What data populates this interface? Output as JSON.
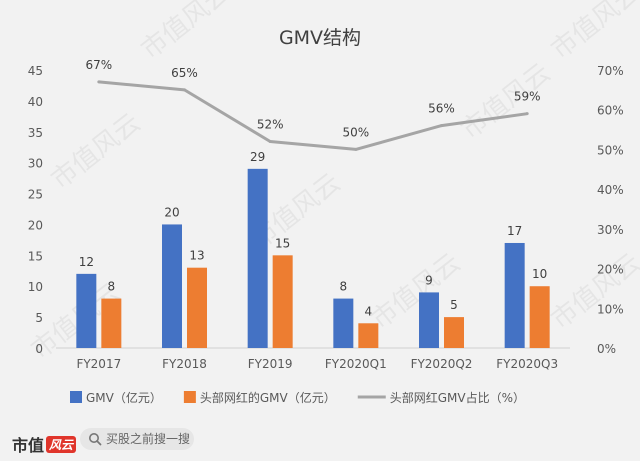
{
  "chart_data": {
    "type": "bar",
    "title": "GMV结构",
    "categories": [
      "FY2017",
      "FY2018",
      "FY2019",
      "FY2020Q1",
      "FY2020Q2",
      "FY2020Q3"
    ],
    "series": [
      {
        "name": "GMV（亿元）",
        "kind": "bar",
        "axis": "left",
        "color": "#4472c4",
        "values": [
          12,
          20,
          29,
          8,
          9,
          17
        ]
      },
      {
        "name": "头部网红的GMV（亿元）",
        "kind": "bar",
        "axis": "left",
        "color": "#ed7d31",
        "values": [
          8,
          13,
          15,
          4,
          5,
          10
        ]
      },
      {
        "name": "头部网红GMV占比（%）",
        "kind": "line",
        "axis": "right",
        "color": "#a5a5a5",
        "values": [
          67,
          65,
          52,
          50,
          56,
          59
        ],
        "labels": [
          "67%",
          "65%",
          "52%",
          "50%",
          "56%",
          "59%"
        ]
      }
    ],
    "y_left": {
      "min": 0,
      "max": 45,
      "ticks": [
        "0",
        "5",
        "10",
        "15",
        "20",
        "25",
        "30",
        "35",
        "40",
        "45"
      ]
    },
    "y_right": {
      "min": 0,
      "max": 70,
      "ticks": [
        "0%",
        "10%",
        "20%",
        "30%",
        "40%",
        "50%",
        "60%",
        "70%"
      ]
    },
    "grid": false,
    "legend_position": "bottom"
  },
  "watermark": "市值风云",
  "footer": {
    "brand_left": "市值",
    "brand_accent": "风云",
    "search_text": "买股之前搜一搜"
  }
}
